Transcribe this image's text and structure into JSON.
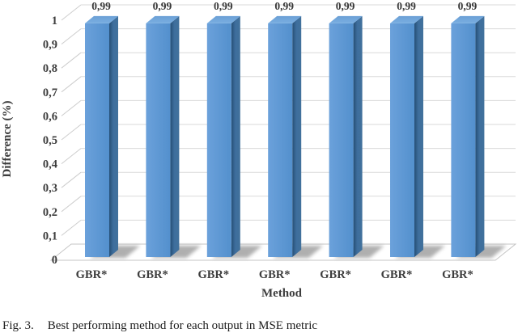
{
  "figure": {
    "caption_prefix": "Fig. 3.",
    "caption_text": "Best performing method for each output in MSE metric"
  },
  "chart_data": {
    "type": "bar",
    "style": "3d-cylinder-less-excel-column",
    "title": "",
    "xlabel": "Method",
    "ylabel": "Difference (%)",
    "categories": [
      "GBR*",
      "GBR*",
      "GBR*",
      "GBR*",
      "GBR*",
      "GBR*",
      "GBR*"
    ],
    "values": [
      0.99,
      0.99,
      0.99,
      0.99,
      0.99,
      0.99,
      0.99
    ],
    "value_labels": [
      "0,99",
      "0,99",
      "0,99",
      "0,99",
      "0,99",
      "0,99",
      "0,99"
    ],
    "ylim": [
      0,
      1
    ],
    "ytick_step": 0.1,
    "ytick_labels": [
      "0",
      "0,1",
      "0,2",
      "0,3",
      "0,4",
      "0,5",
      "0,6",
      "0,7",
      "0,8",
      "0,9",
      "1"
    ],
    "grid": true,
    "legend": "none",
    "colors": {
      "bar_front_light": "#6BA1DB",
      "bar_front_dark": "#5390CD",
      "bar_side_dark": "#264F75",
      "bar_side": "#41719C",
      "bar_top": "#74AADF",
      "gridline": "#DADADA",
      "tick_connector": "#CDCDCD",
      "floor_stroke": "#C6C6C6",
      "shadow": "#6E6E6E",
      "text": "#3D3D3D"
    }
  }
}
